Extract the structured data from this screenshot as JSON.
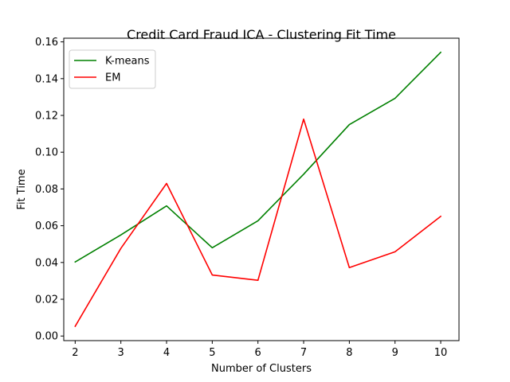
{
  "chart_data": {
    "type": "line",
    "title": "Credit Card Fraud ICA - Clustering Fit Time",
    "xlabel": "Number of Clusters",
    "ylabel": "Fit Time",
    "x": [
      2,
      3,
      4,
      5,
      6,
      7,
      8,
      9,
      10
    ],
    "xlim": [
      1.75,
      10.4
    ],
    "ylim": [
      -0.0025,
      0.162
    ],
    "xticks": [
      "2",
      "3",
      "4",
      "5",
      "6",
      "7",
      "8",
      "9",
      "10"
    ],
    "yticks": [
      "0.00",
      "0.02",
      "0.04",
      "0.06",
      "0.08",
      "0.10",
      "0.12",
      "0.14",
      "0.16"
    ],
    "grid": false,
    "legend_position": "top-left",
    "series": [
      {
        "name": "K-means",
        "color": "#008000",
        "values": [
          0.0403,
          0.055,
          0.0708,
          0.048,
          0.0627,
          0.088,
          0.115,
          0.1293,
          0.1543
        ]
      },
      {
        "name": "EM",
        "color": "#ff0000",
        "values": [
          0.0053,
          0.0477,
          0.083,
          0.0332,
          0.0303,
          0.118,
          0.0372,
          0.0458,
          0.0651
        ]
      }
    ]
  }
}
